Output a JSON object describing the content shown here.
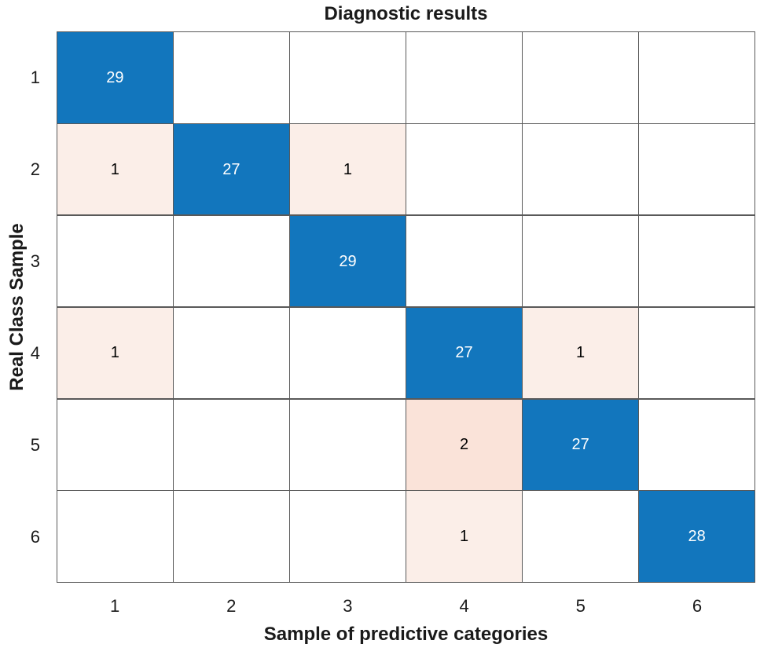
{
  "chart_data": {
    "type": "heatmap",
    "subtype": "confusion-matrix",
    "title": "Diagnostic results",
    "xlabel": "Sample of predictive categories",
    "ylabel": "Real Class Sample",
    "x_categories": [
      "1",
      "2",
      "3",
      "4",
      "5",
      "6"
    ],
    "y_categories": [
      "1",
      "2",
      "3",
      "4",
      "5",
      "6"
    ],
    "matrix": [
      [
        29,
        null,
        null,
        null,
        null,
        null
      ],
      [
        1,
        27,
        1,
        null,
        null,
        null
      ],
      [
        null,
        null,
        29,
        null,
        null,
        null
      ],
      [
        1,
        null,
        null,
        27,
        1,
        null
      ],
      [
        null,
        null,
        null,
        2,
        27,
        null
      ],
      [
        null,
        null,
        null,
        1,
        null,
        28
      ]
    ],
    "colors": {
      "diagonal_fill": "#1276bd",
      "offdiag_fill_low": "#fbeee8",
      "offdiag_fill_high": "#fae3d9",
      "empty_fill": "#ffffff",
      "grid_line": "#595959",
      "diagonal_text": "#ffffff",
      "offdiag_text": "#000000",
      "axis_text": "#1a1a1a"
    },
    "legend": "none",
    "grid": true,
    "axis_ranges": {
      "x": [
        "1",
        "6"
      ],
      "y": [
        "1",
        "6"
      ]
    }
  }
}
